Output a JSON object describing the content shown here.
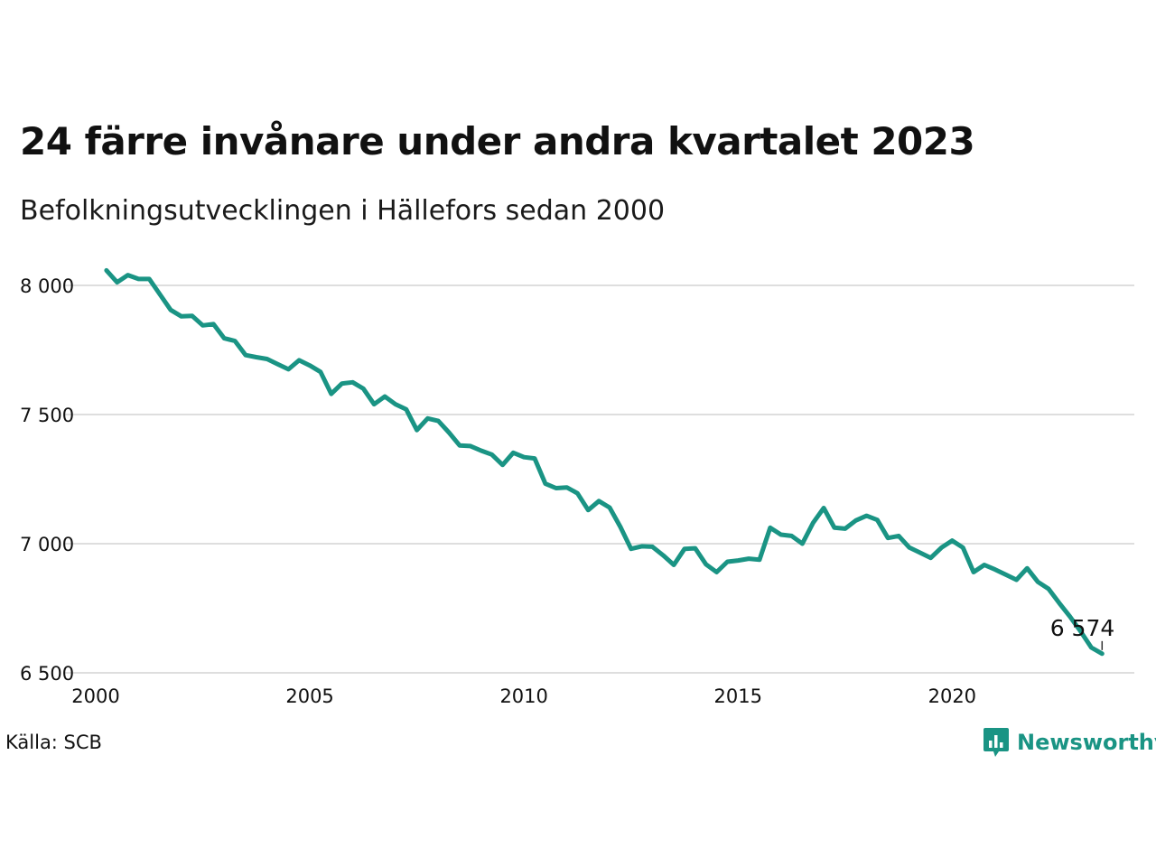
{
  "chart_data": {
    "type": "line",
    "title": "24 färre invånare under andra kvartalet 2023",
    "subtitle": "Befolkningsutvecklingen i Hällefors sedan 2000",
    "xlabel": "",
    "ylabel": "",
    "xlim": [
      2000,
      2024
    ],
    "ylim": [
      6500,
      8050
    ],
    "x_ticks": [
      2000,
      2005,
      2010,
      2015,
      2020
    ],
    "x_tick_labels": [
      "2000",
      "2005",
      "2010",
      "2015",
      "2020"
    ],
    "y_ticks": [
      6500,
      7000,
      7500,
      8000
    ],
    "y_tick_labels": [
      "6 500",
      "7 000",
      "7 500",
      "8 000"
    ],
    "grid": "horizontal",
    "series": [
      {
        "name": "",
        "color": "#1a9484",
        "x": [
          2000.25,
          2000.5,
          2000.75,
          2001.0,
          2001.25,
          2001.5,
          2001.75,
          2002.0,
          2002.25,
          2002.5,
          2002.75,
          2003.0,
          2003.25,
          2003.5,
          2003.75,
          2004.0,
          2004.25,
          2004.5,
          2004.75,
          2005.0,
          2005.25,
          2005.5,
          2005.75,
          2006.0,
          2006.25,
          2006.5,
          2006.75,
          2007.0,
          2007.25,
          2007.5,
          2007.75,
          2008.0,
          2008.25,
          2008.5,
          2008.75,
          2009.0,
          2009.25,
          2009.5,
          2009.75,
          2010.0,
          2010.25,
          2010.5,
          2010.75,
          2011.0,
          2011.25,
          2011.5,
          2011.75,
          2012.0,
          2012.25,
          2012.5,
          2012.75,
          2013.0,
          2013.25,
          2013.5,
          2013.75,
          2014.0,
          2014.25,
          2014.5,
          2014.75,
          2015.0,
          2015.25,
          2015.5,
          2015.75,
          2016.0,
          2016.25,
          2016.5,
          2016.75,
          2017.0,
          2017.25,
          2017.5,
          2017.75,
          2018.0,
          2018.25,
          2018.5,
          2018.75,
          2019.0,
          2019.25,
          2019.5,
          2019.75,
          2020.0,
          2020.25,
          2020.5,
          2020.75,
          2021.0,
          2021.25,
          2021.5,
          2021.75,
          2022.0,
          2022.25,
          2022.5,
          2022.75,
          2023.0,
          2023.25,
          2023.5
        ],
        "values": [
          8058,
          8012,
          8040,
          8025,
          8025,
          7965,
          7905,
          7880,
          7882,
          7845,
          7850,
          7795,
          7785,
          7730,
          7722,
          7715,
          7695,
          7675,
          7710,
          7690,
          7665,
          7580,
          7620,
          7625,
          7600,
          7540,
          7570,
          7540,
          7520,
          7440,
          7485,
          7475,
          7430,
          7380,
          7378,
          7360,
          7345,
          7305,
          7352,
          7335,
          7330,
          7232,
          7215,
          7218,
          7195,
          7130,
          7165,
          7140,
          7065,
          6980,
          6990,
          6988,
          6955,
          6918,
          6980,
          6982,
          6920,
          6890,
          6930,
          6935,
          6942,
          6938,
          7062,
          7035,
          7030,
          7000,
          7080,
          7138,
          7062,
          7058,
          7090,
          7108,
          7092,
          7022,
          7030,
          6985,
          6965,
          6945,
          6985,
          7012,
          6985,
          6890,
          6918,
          6900,
          6880,
          6860,
          6905,
          6852,
          6825,
          6770,
          6718,
          6660,
          6598,
          6574
        ]
      }
    ],
    "annotations": [
      {
        "text": "6 574",
        "x": 2023.5,
        "y": 6574
      }
    ]
  },
  "source": "Källa: SCB",
  "logo": {
    "text": "Newsworthy",
    "color": "#1a9484",
    "icon": "bar-chart-speech-bubble-icon"
  }
}
